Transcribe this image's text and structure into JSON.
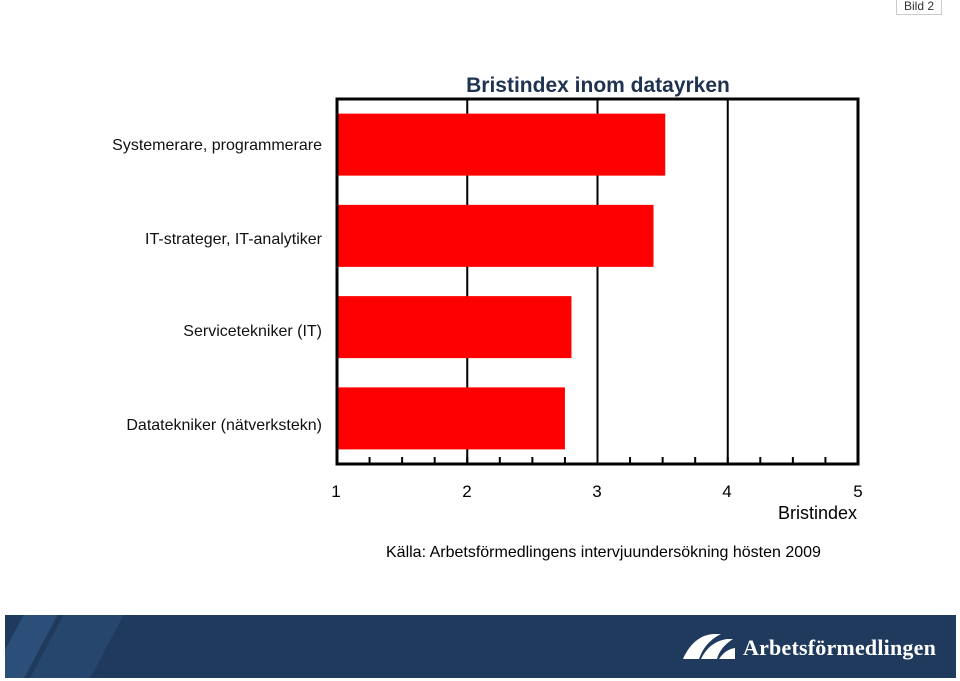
{
  "slide_tag": "Bild 2",
  "chart_data": {
    "type": "bar",
    "orientation": "horizontal",
    "title": "Bristindex inom datayrken",
    "categories": [
      "Systemerare, programmerare",
      "IT-strateger, IT-analytiker",
      "Servicetekniker (IT)",
      "Datatekniker (nätverkstekn)"
    ],
    "values": [
      3.52,
      3.43,
      2.8,
      2.75
    ],
    "xlabel": "Bristindex",
    "ylabel": "",
    "xlim": [
      1,
      5
    ],
    "xticks": [
      "1",
      "2",
      "3",
      "4",
      "5"
    ],
    "bar_color": "#ff0000",
    "grid": "vertical"
  },
  "source": "Källa: Arbetsförmedlingens intervjuundersökning hösten 2009",
  "footer": {
    "brand": "Arbetsförmedlingen",
    "logo_icon": "arbetsformedlingen-logo-icon",
    "background": "#1f3a5c"
  }
}
